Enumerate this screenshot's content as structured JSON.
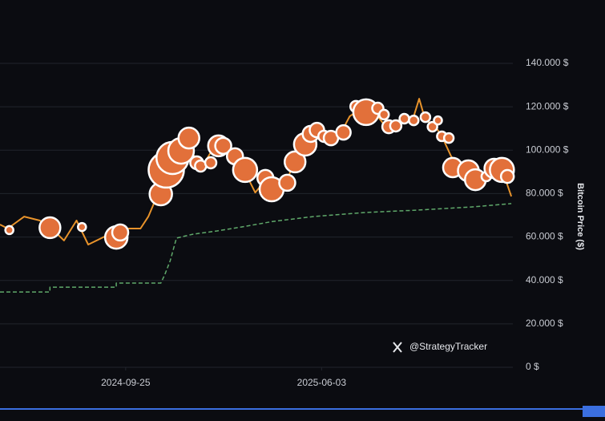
{
  "chart_data": {
    "type": "line",
    "y_label": "Bitcoin Price ($)",
    "watermark": "@StrategyTracker",
    "xlim": [
      "2024-04-17",
      "2026-02-03"
    ],
    "xticks": [
      "2024-09-25",
      "2025-06-03"
    ],
    "ylim": [
      0,
      145000
    ],
    "yticks": [
      {
        "value": 0,
        "label": "0 $"
      },
      {
        "value": 20000,
        "label": "20.000 $"
      },
      {
        "value": 40000,
        "label": "40.000 $"
      },
      {
        "value": 60000,
        "label": "60.000 $"
      },
      {
        "value": 80000,
        "label": "80.000 $"
      },
      {
        "value": 100000,
        "label": "100.000 $"
      },
      {
        "value": 120000,
        "label": "120.000 $"
      },
      {
        "value": 140000,
        "label": "140.000 $"
      }
    ],
    "grid": true,
    "series": [
      {
        "type": "line",
        "color": "#5fa86a",
        "dashed": true,
        "x": [
          "2024-04-17",
          "2024-06-20",
          "2024-06-20",
          "2024-09-13",
          "2024-09-13",
          "2024-11-09",
          "2024-11-14",
          "2024-11-21",
          "2024-11-29",
          "2024-12-20",
          "2025-01-20",
          "2025-02-20",
          "2025-04-02",
          "2025-05-23",
          "2025-07-29",
          "2025-10-04",
          "2025-12-15",
          "2026-02-01"
        ],
        "values": [
          34700,
          34700,
          36900,
          36900,
          38800,
          38800,
          42500,
          49100,
          59500,
          61300,
          62800,
          64600,
          67200,
          69400,
          71300,
          72400,
          73900,
          75400
        ]
      },
      {
        "type": "line",
        "color": "#e8932b",
        "dashed": false,
        "x": [
          "2024-04-17",
          "2024-04-27",
          "2024-05-18",
          "2024-06-07",
          "2024-06-20",
          "2024-07-08",
          "2024-07-24",
          "2024-08-08",
          "2024-08-29",
          "2024-09-13",
          "2024-09-29",
          "2024-10-14",
          "2024-10-24",
          "2024-11-04",
          "2024-11-14",
          "2024-11-24",
          "2024-12-05",
          "2024-12-15",
          "2024-12-25",
          "2025-01-04",
          "2025-01-15",
          "2025-01-25",
          "2025-02-04",
          "2025-02-15",
          "2025-02-25",
          "2025-03-10",
          "2025-03-23",
          "2025-04-02",
          "2025-04-17",
          "2025-04-28",
          "2025-05-13",
          "2025-05-28",
          "2025-06-13",
          "2025-06-28",
          "2025-07-09",
          "2025-07-24",
          "2025-08-03",
          "2025-08-14",
          "2025-08-24",
          "2025-09-08",
          "2025-09-19",
          "2025-09-29",
          "2025-10-06",
          "2025-10-14",
          "2025-10-25",
          "2025-11-04",
          "2025-11-16",
          "2025-11-30",
          "2025-12-15",
          "2025-12-31",
          "2026-01-15",
          "2026-01-25",
          "2026-02-01"
        ],
        "values": [
          65750,
          63900,
          69400,
          67600,
          64600,
          58400,
          67600,
          56500,
          60200,
          59500,
          63900,
          63900,
          69400,
          78700,
          91600,
          99000,
          97200,
          104500,
          93500,
          94200,
          100800,
          102700,
          99000,
          91600,
          89800,
          80500,
          86100,
          82400,
          84200,
          93500,
          102700,
          108200,
          106400,
          108200,
          115600,
          119300,
          117500,
          115600,
          110800,
          113700,
          113700,
          115600,
          123700,
          113700,
          111900,
          106400,
          97200,
          89800,
          86100,
          89800,
          93500,
          86100,
          78700
        ]
      },
      {
        "type": "scatter",
        "color": "#e2703a",
        "x": [
          "2024-04-29",
          "2024-06-20",
          "2024-07-31",
          "2024-09-13",
          "2024-09-18",
          "2024-11-09",
          "2024-11-16",
          "2024-11-24",
          "2024-12-05",
          "2024-12-15",
          "2024-12-25",
          "2024-12-30",
          "2025-01-12",
          "2025-01-22",
          "2025-01-28",
          "2025-02-12",
          "2025-02-25",
          "2025-03-23",
          "2025-03-31",
          "2025-04-20",
          "2025-04-30",
          "2025-05-13",
          "2025-05-20",
          "2025-05-28",
          "2025-06-06",
          "2025-06-15",
          "2025-07-01",
          "2025-07-17",
          "2025-07-30",
          "2025-08-14",
          "2025-08-22",
          "2025-08-28",
          "2025-09-06",
          "2025-09-17",
          "2025-09-29",
          "2025-10-14",
          "2025-10-23",
          "2025-10-30",
          "2025-11-04",
          "2025-11-13",
          "2025-11-18",
          "2025-12-08",
          "2025-12-17",
          "2025-12-31",
          "2026-01-10",
          "2026-01-20",
          "2026-01-27"
        ],
        "values": [
          63200,
          64300,
          64600,
          59800,
          62100,
          79800,
          90900,
          96400,
          99700,
          105600,
          94200,
          92700,
          94200,
          102000,
          102000,
          97200,
          90900,
          87200,
          82000,
          85000,
          94600,
          102700,
          107500,
          109300,
          106400,
          105600,
          108200,
          120100,
          117500,
          119300,
          116400,
          110800,
          111200,
          114500,
          113700,
          115200,
          110800,
          113700,
          106400,
          105600,
          92000,
          90500,
          86400,
          87900,
          91600,
          90900,
          87900
        ],
        "sizes": [
          2900,
          19400,
          2900,
          22500,
          11500,
          22500,
          55700,
          46000,
          29400,
          19400,
          7400,
          5600,
          5600,
          19400,
          11500,
          11500,
          25900,
          11500,
          25900,
          11500,
          19400,
          22500,
          11500,
          9300,
          5600,
          9300,
          9300,
          5600,
          29400,
          5600,
          4100,
          7400,
          5600,
          4100,
          4100,
          4100,
          4100,
          2900,
          4100,
          4100,
          16600,
          19400,
          19400,
          4100,
          16600,
          25900,
          7400
        ]
      }
    ]
  }
}
